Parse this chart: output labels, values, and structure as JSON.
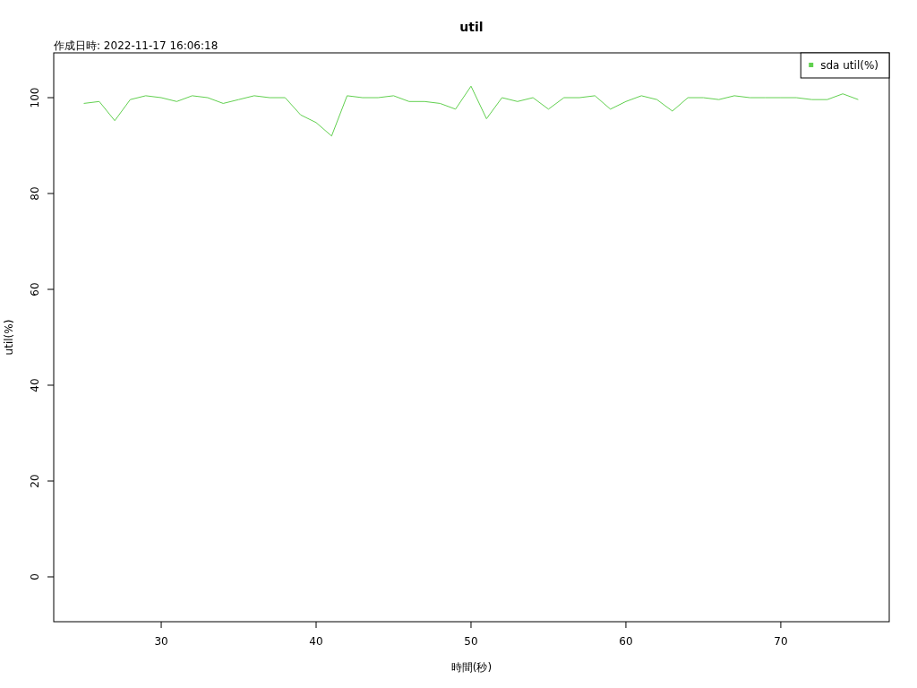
{
  "chart_data": {
    "type": "line",
    "title": "util",
    "subtitle": "作成日時: 2022-11-17 16:06:18",
    "xlabel": "時間(秒)",
    "ylabel": "util(%)",
    "x": [
      25,
      26,
      27,
      28,
      29,
      30,
      31,
      32,
      33,
      34,
      35,
      36,
      37,
      38,
      39,
      40,
      41,
      42,
      43,
      44,
      45,
      46,
      47,
      48,
      49,
      50,
      51,
      52,
      53,
      54,
      55,
      56,
      57,
      58,
      59,
      60,
      61,
      62,
      63,
      64,
      65,
      66,
      67,
      68,
      69,
      70,
      71,
      72,
      73,
      74,
      75
    ],
    "series": [
      {
        "name": "sda util(%)",
        "color": "#61d04f",
        "values": [
          98.8,
          99.2,
          95.2,
          99.6,
          100.4,
          100,
          99.2,
          100.4,
          100,
          98.8,
          99.6,
          100.4,
          100,
          100,
          96.4,
          94.8,
          92,
          100.4,
          100,
          100,
          100.4,
          99.2,
          99.2,
          98.8,
          97.6,
          102.4,
          95.6,
          100,
          99.2,
          100,
          97.6,
          100,
          100,
          100.4,
          97.6,
          99.2,
          100.4,
          99.6,
          97.2,
          100,
          100,
          99.6,
          100.4,
          100,
          100,
          100,
          100,
          99.6,
          99.6,
          100.8,
          99.6
        ]
      }
    ],
    "xlim": [
      23.06,
      77
    ],
    "ylim": [
      -9.35,
      109.35
    ],
    "xticks": [
      30,
      40,
      50,
      60,
      70
    ],
    "yticks": [
      0,
      20,
      40,
      60,
      80,
      100
    ],
    "legend": "top right",
    "grid": false,
    "marker": "none",
    "line_style": "solid"
  }
}
